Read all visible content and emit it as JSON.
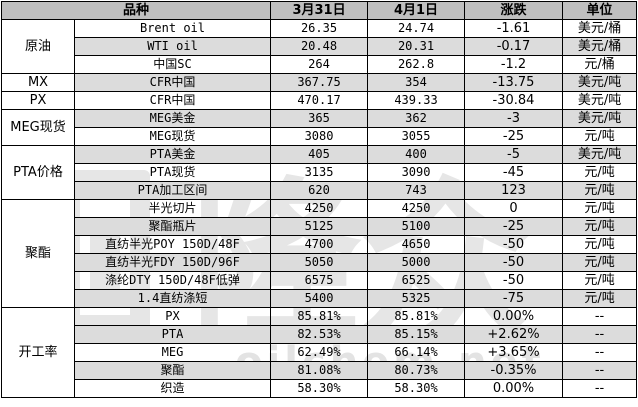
{
  "header": [
    "品种",
    "3月31日",
    "4月1日",
    "涨跌",
    "单位"
  ],
  "watermark": "隆众",
  "watermark_sub": "oilchem.net",
  "groups": [
    {
      "name": "原油",
      "rows": [
        {
          "item": "Brent oil",
          "mar31": "26.35",
          "apr1": "24.74",
          "change": "-1.61",
          "unit": "美元/桶"
        },
        {
          "item": "WTI oil",
          "mar31": "20.48",
          "apr1": "20.31",
          "change": "-0.17",
          "unit": "美元/桶"
        },
        {
          "item": "中国SC",
          "mar31": "264",
          "apr1": "262.8",
          "change": "-1.2",
          "unit": "元/桶"
        }
      ]
    },
    {
      "name": "MX",
      "rows": [
        {
          "item": "CFR中国",
          "mar31": "367.75",
          "apr1": "354",
          "change": "-13.75",
          "unit": "美元/吨"
        }
      ]
    },
    {
      "name": "PX",
      "rows": [
        {
          "item": "CFR中国",
          "mar31": "470.17",
          "apr1": "439.33",
          "change": "-30.84",
          "unit": "美元/吨"
        }
      ]
    },
    {
      "name": "MEG现货",
      "rows": [
        {
          "item": "MEG美金",
          "mar31": "365",
          "apr1": "362",
          "change": "-3",
          "unit": "美元/吨"
        },
        {
          "item": "MEG现货",
          "mar31": "3080",
          "apr1": "3055",
          "change": "-25",
          "unit": "元/吨"
        }
      ]
    },
    {
      "name": "PTA价格",
      "rows": [
        {
          "item": "PTA美金",
          "mar31": "405",
          "apr1": "400",
          "change": "-5",
          "unit": "美元/吨"
        },
        {
          "item": "PTA现货",
          "mar31": "3135",
          "apr1": "3090",
          "change": "-45",
          "unit": "元/吨"
        },
        {
          "item": "PTA加工区间",
          "mar31": "620",
          "apr1": "743",
          "change": "123",
          "unit": "元/吨"
        }
      ]
    },
    {
      "name": "聚酯",
      "rows": [
        {
          "item": "半光切片",
          "mar31": "4250",
          "apr1": "4250",
          "change": "0",
          "unit": "元/吨"
        },
        {
          "item": "聚酯瓶片",
          "mar31": "5125",
          "apr1": "5100",
          "change": "-25",
          "unit": "元/吨"
        },
        {
          "item": "直纺半光POY 150D/48F",
          "mar31": "4700",
          "apr1": "4650",
          "change": "-50",
          "unit": "元/吨"
        },
        {
          "item": "直纺半光FDY 150D/96F",
          "mar31": "5050",
          "apr1": "5000",
          "change": "-50",
          "unit": "元/吨"
        },
        {
          "item": "涤纶DTY 150D/48F低弹",
          "mar31": "6575",
          "apr1": "6525",
          "change": "-50",
          "unit": "元/吨"
        },
        {
          "item": "1.4直纺涤短",
          "mar31": "5400",
          "apr1": "5325",
          "change": "-75",
          "unit": "元/吨"
        }
      ]
    },
    {
      "name": "开工率",
      "rows": [
        {
          "item": "PX",
          "mar31": "85.81%",
          "apr1": "85.81%",
          "change": "0.00%",
          "unit": "--"
        },
        {
          "item": "PTA",
          "mar31": "82.53%",
          "apr1": "85.15%",
          "change": "+2.62%",
          "unit": "--"
        },
        {
          "item": "MEG",
          "mar31": "62.49%",
          "apr1": "66.14%",
          "change": "+3.65%",
          "unit": "--"
        },
        {
          "item": "聚酯",
          "mar31": "81.08%",
          "apr1": "80.73%",
          "change": "-0.35%",
          "unit": "--"
        },
        {
          "item": "织造",
          "mar31": "58.30%",
          "apr1": "58.30%",
          "change": "0.00%",
          "unit": "--"
        }
      ]
    }
  ]
}
